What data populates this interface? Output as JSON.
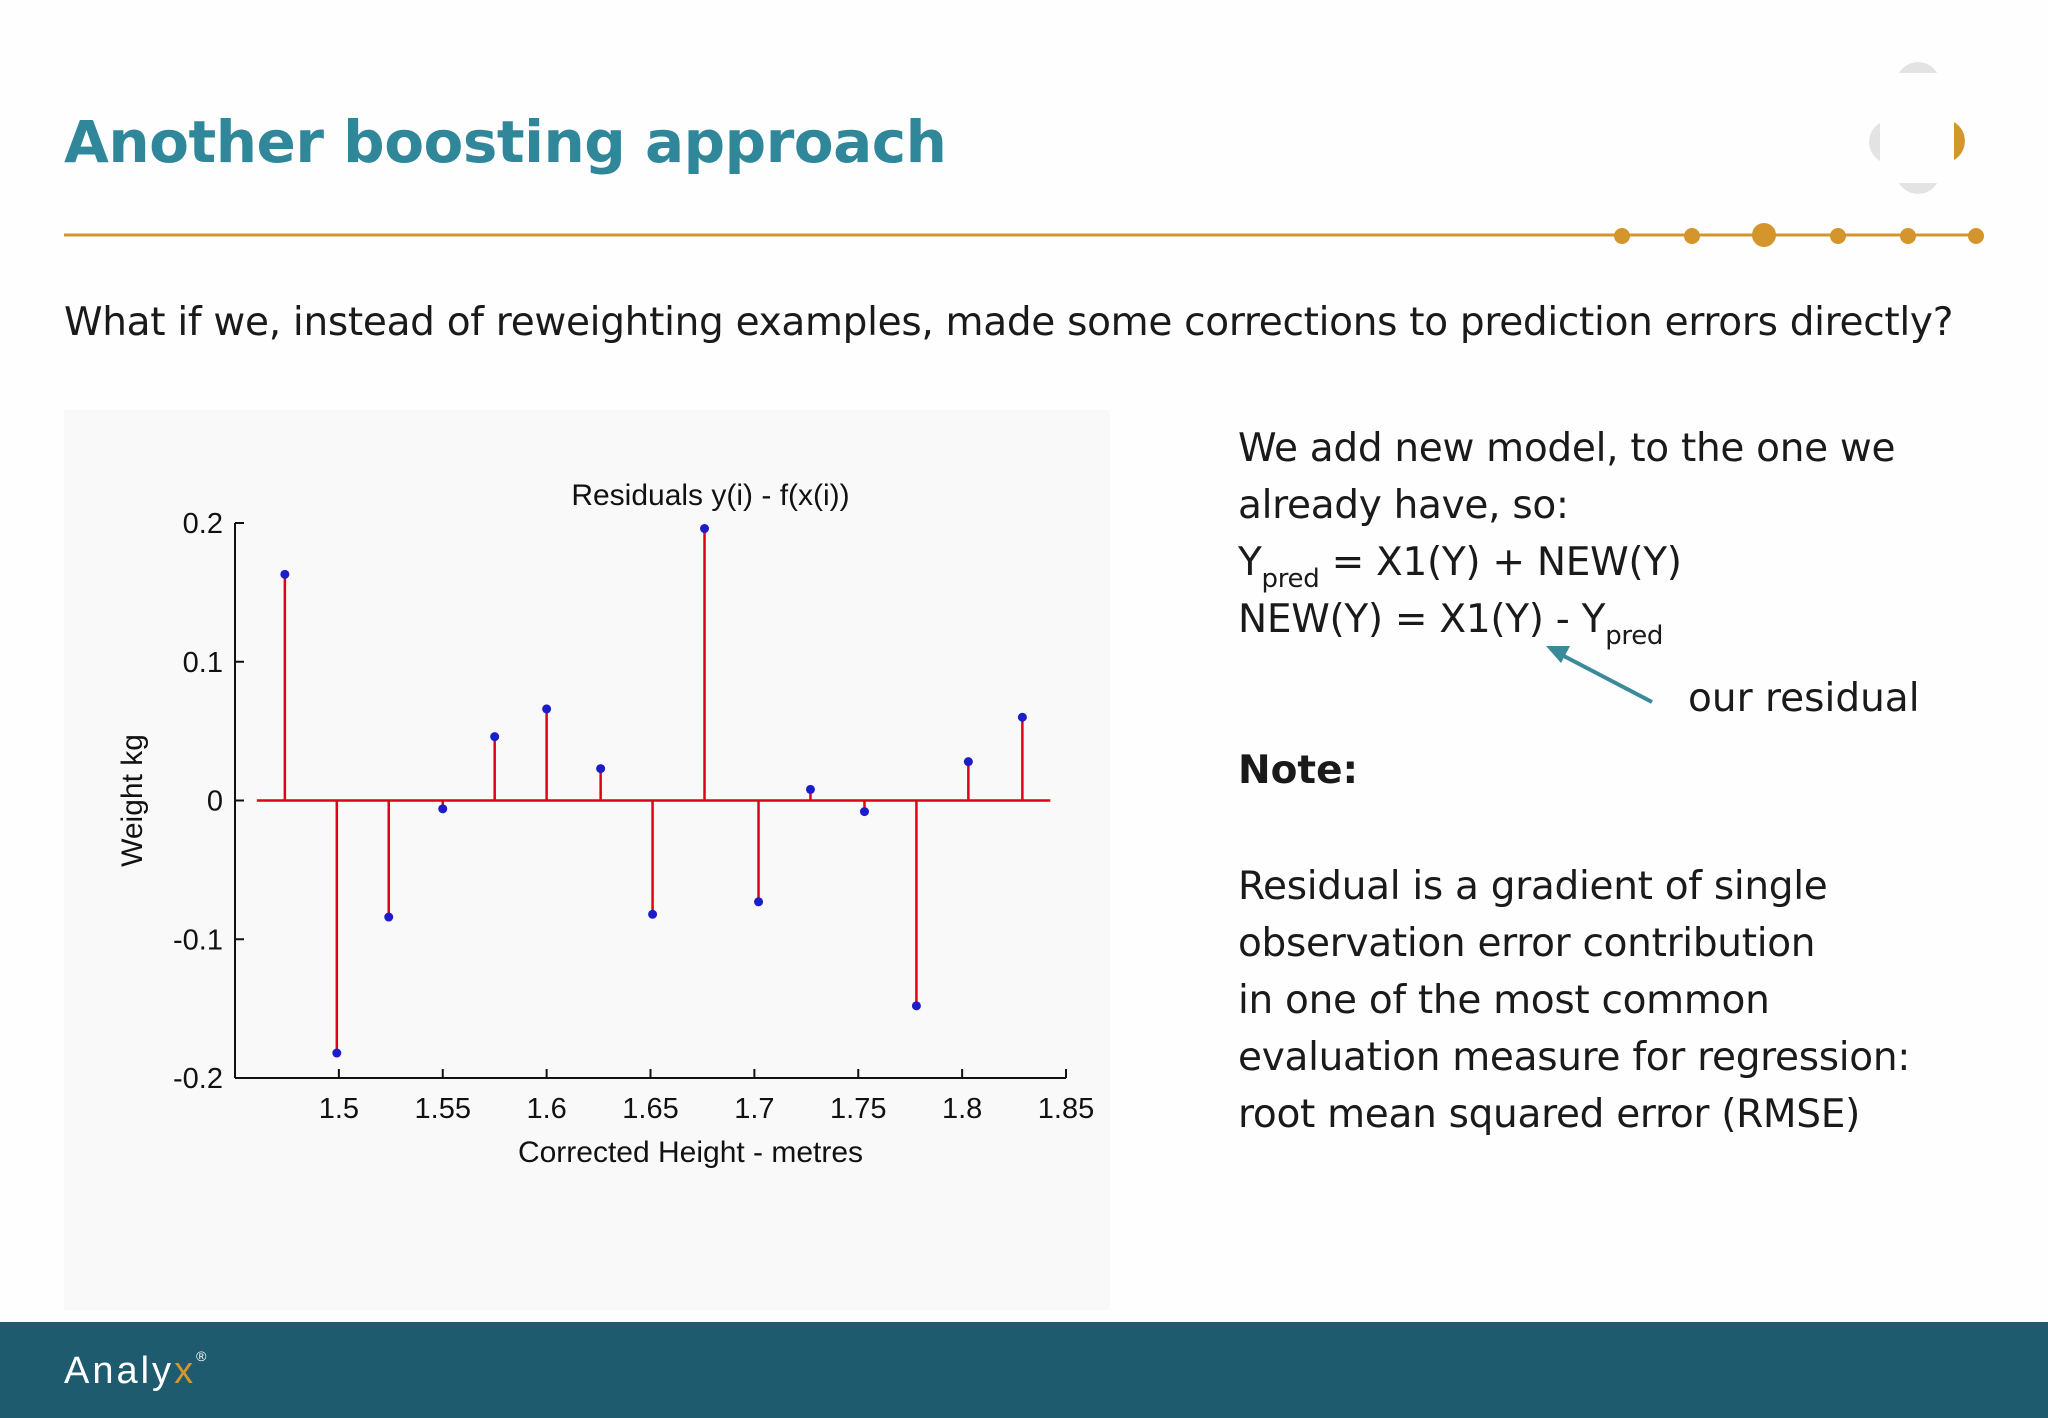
{
  "slide": {
    "title": "Another boosting approach",
    "intro": "What if we, instead of reweighting examples, made some corrections to prediction errors directly?"
  },
  "side": {
    "line1": "We add new model, to the one we",
    "line2": "already have, so:",
    "eq1_y": "Y",
    "eq1_sub": "pred",
    "eq1_rest": " = X1(Y) + NEW(Y)",
    "eq2_main": "NEW(Y) = X1(Y) - Y",
    "eq2_sub": "pred",
    "annotation": "our residual",
    "note_title": "Note:",
    "note_lines": [
      "Residual is a gradient of single",
      "observation error contribution",
      "in one of the most common",
      "evaluation measure for regression:",
      "root mean squared error (RMSE)"
    ]
  },
  "footer": {
    "brand_main": "Analy",
    "brand_x": "x",
    "brand_reg": "®"
  },
  "colors": {
    "title": "#31879a",
    "accent_gold": "#d4952c",
    "footer_bg": "#1e5b6e",
    "stem": "#e0001a",
    "marker": "#1c1cc8",
    "arrow": "#3a8a99"
  },
  "chart_data": {
    "type": "stem",
    "title": "Residuals y(i) - f(x(i))",
    "xlabel": "Corrected Height - metres",
    "ylabel": "Weight kg",
    "xlim": [
      1.45,
      1.85
    ],
    "ylim": [
      -0.2,
      0.2
    ],
    "xticks": [
      1.5,
      1.55,
      1.6,
      1.65,
      1.7,
      1.75,
      1.8,
      1.85
    ],
    "xtick_labels": [
      "1.5",
      "1.55",
      "1.6",
      "1.65",
      "1.7",
      "1.75",
      "1.8",
      "1.85"
    ],
    "yticks": [
      -0.2,
      -0.1,
      0,
      0.1,
      0.2
    ],
    "ytick_labels": [
      "-0.2",
      "-0.1",
      "0",
      "0.1",
      "0.2"
    ],
    "grid": false,
    "x": [
      1.474,
      1.499,
      1.524,
      1.55,
      1.575,
      1.6,
      1.626,
      1.651,
      1.676,
      1.702,
      1.727,
      1.753,
      1.778,
      1.803,
      1.829
    ],
    "y": [
      0.163,
      -0.182,
      -0.084,
      -0.006,
      0.046,
      0.066,
      0.023,
      -0.082,
      0.196,
      -0.073,
      0.008,
      -0.008,
      -0.148,
      0.028,
      0.06
    ]
  }
}
